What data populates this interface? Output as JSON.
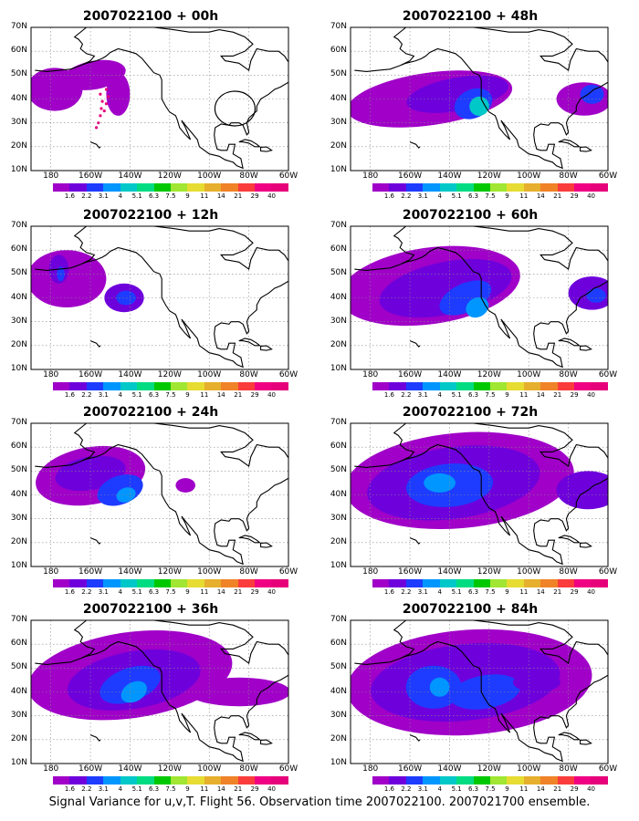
{
  "figure": {
    "caption": "Signal Variance for u,v,T. Flight 56. Observation time 2007022100. 2007021700 ensemble."
  },
  "axes": {
    "lat_ticks": [
      "70N",
      "60N",
      "50N",
      "40N",
      "30N",
      "20N",
      "10N"
    ],
    "lon_ticks": [
      "180",
      "160W",
      "140W",
      "120W",
      "100W",
      "80W",
      "60W"
    ],
    "lat_range": [
      10,
      70
    ],
    "lon_range": [
      -190,
      -60
    ]
  },
  "colorbar": {
    "labels": [
      "1.6",
      "2.2",
      "3.1",
      "4",
      "5.1",
      "6.3",
      "7.5",
      "9",
      "11",
      "14",
      "21",
      "29",
      "40"
    ],
    "colors": [
      "#a000c8",
      "#6e00dc",
      "#1e3cff",
      "#0096ff",
      "#00c8c8",
      "#00dc82",
      "#00c800",
      "#a0e632",
      "#e6dc32",
      "#e6af2d",
      "#f08228",
      "#fa3c3c",
      "#f00082",
      "#e6007a"
    ]
  },
  "panels": [
    {
      "title": "2007022100 + 00h",
      "lead_hours": 0
    },
    {
      "title": "2007022100 + 48h",
      "lead_hours": 48
    },
    {
      "title": "2007022100 + 12h",
      "lead_hours": 12
    },
    {
      "title": "2007022100 + 60h",
      "lead_hours": 60
    },
    {
      "title": "2007022100 + 24h",
      "lead_hours": 24
    },
    {
      "title": "2007022100 + 72h",
      "lead_hours": 72
    },
    {
      "title": "2007022100 + 36h",
      "lead_hours": 36
    },
    {
      "title": "2007022100 + 84h",
      "lead_hours": 84
    }
  ]
}
